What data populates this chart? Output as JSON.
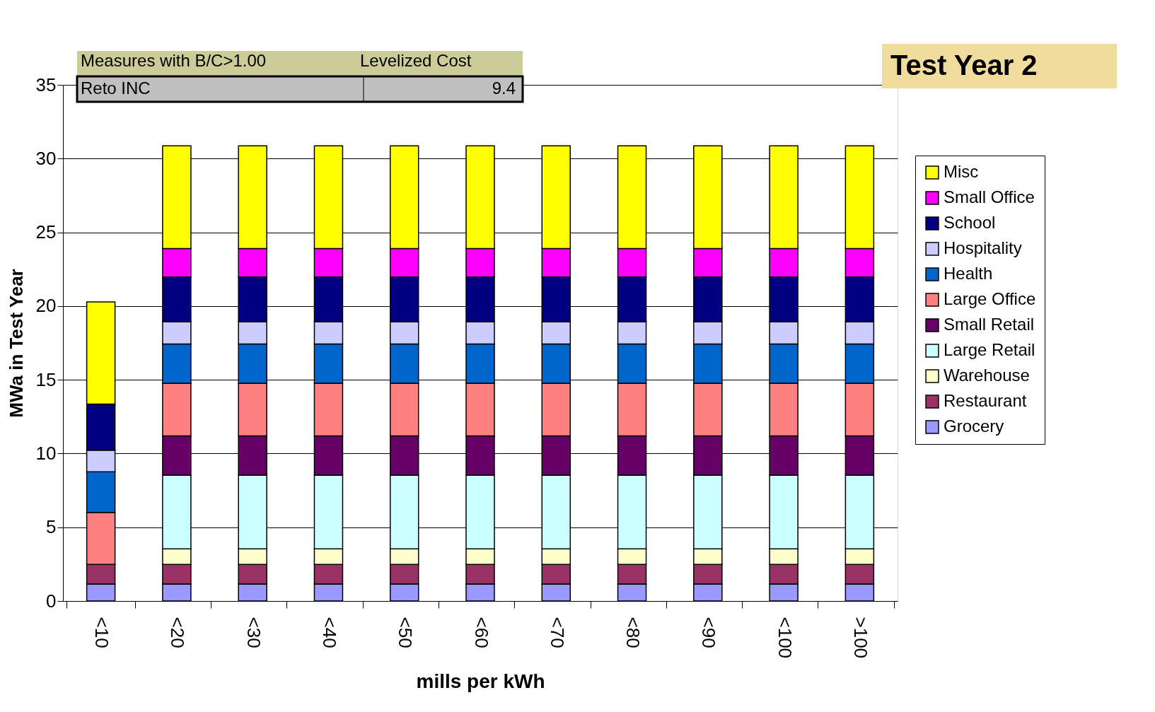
{
  "chart_data": {
    "type": "bar",
    "stacked": true,
    "title": "Test Year 2",
    "xlabel": "mills per kWh",
    "ylabel": "MWa in Test Year",
    "categories": [
      "<10",
      "<20",
      "<30",
      "<40",
      "<50",
      "<60",
      "<70",
      "<80",
      "<90",
      "<100",
      ">100"
    ],
    "series": [
      {
        "name": "Grocery",
        "color": "#9999ff",
        "values": [
          1.15,
          1.15,
          1.15,
          1.15,
          1.15,
          1.15,
          1.15,
          1.15,
          1.15,
          1.15,
          1.15
        ]
      },
      {
        "name": "Restaurant",
        "color": "#993366",
        "values": [
          1.33,
          1.33,
          1.33,
          1.33,
          1.33,
          1.33,
          1.33,
          1.33,
          1.33,
          1.33,
          1.33
        ]
      },
      {
        "name": "Warehouse",
        "color": "#ffffcc",
        "values": [
          0,
          1.05,
          1.05,
          1.05,
          1.05,
          1.05,
          1.05,
          1.05,
          1.05,
          1.05,
          1.05
        ]
      },
      {
        "name": "Large Retail",
        "color": "#ccffff",
        "values": [
          0,
          5.0,
          5.0,
          5.0,
          5.0,
          5.0,
          5.0,
          5.0,
          5.0,
          5.0,
          5.0
        ]
      },
      {
        "name": "Small Retail",
        "color": "#660066",
        "values": [
          0,
          2.66,
          2.66,
          2.66,
          2.66,
          2.66,
          2.66,
          2.66,
          2.66,
          2.66,
          2.66
        ]
      },
      {
        "name": "Large Office",
        "color": "#ff8080",
        "values": [
          3.53,
          3.58,
          3.58,
          3.58,
          3.58,
          3.58,
          3.58,
          3.58,
          3.58,
          3.58,
          3.58
        ]
      },
      {
        "name": "Health",
        "color": "#0066cc",
        "values": [
          2.75,
          2.66,
          2.66,
          2.66,
          2.66,
          2.66,
          2.66,
          2.66,
          2.66,
          2.66,
          2.66
        ]
      },
      {
        "name": "Hospitality",
        "color": "#ccccff",
        "values": [
          1.47,
          1.51,
          1.51,
          1.51,
          1.51,
          1.51,
          1.51,
          1.51,
          1.51,
          1.51,
          1.51
        ]
      },
      {
        "name": "School",
        "color": "#000080",
        "values": [
          3.12,
          3.03,
          3.03,
          3.03,
          3.03,
          3.03,
          3.03,
          3.03,
          3.03,
          3.03,
          3.03
        ]
      },
      {
        "name": "Small Office",
        "color": "#ff00ff",
        "values": [
          0,
          1.93,
          1.93,
          1.93,
          1.93,
          1.93,
          1.93,
          1.93,
          1.93,
          1.93,
          1.93
        ]
      },
      {
        "name": "Misc",
        "color": "#ffff00",
        "values": [
          6.93,
          6.97,
          6.97,
          6.97,
          6.97,
          6.97,
          6.97,
          6.97,
          6.97,
          6.97,
          6.97
        ]
      }
    ],
    "ylim": [
      0,
      35
    ],
    "yticks": [
      0,
      5,
      10,
      15,
      20,
      25,
      30,
      35
    ],
    "grid": "y",
    "legend": "right",
    "annotations": [
      "Measures with B/C>1.00",
      "Levelized Cost",
      "Reto INC",
      "9.4"
    ]
  }
}
